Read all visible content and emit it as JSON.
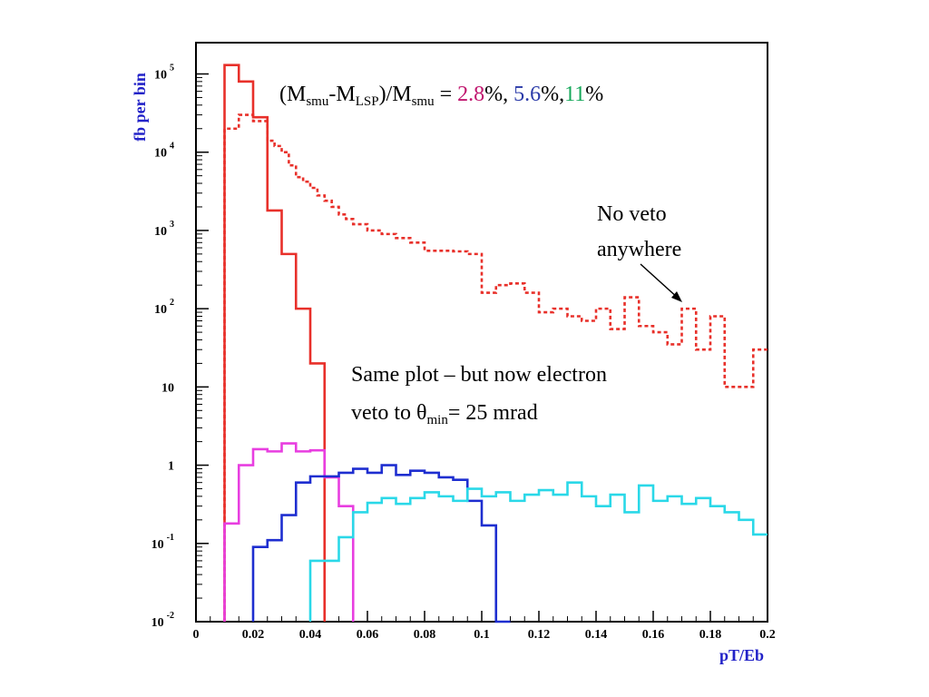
{
  "chart_data": {
    "type": "line",
    "style": "step-histogram",
    "xlabel": "pT/Eb",
    "ylabel": "fb per bin",
    "xlim": [
      0,
      0.2
    ],
    "ylim_log10": [
      -2,
      5.4
    ],
    "yscale": "log",
    "x_ticks": [
      "0",
      "0.02",
      "0.04",
      "0.06",
      "0.08",
      "0.1",
      "0.12",
      "0.14",
      "0.16",
      "0.18",
      "0.2"
    ],
    "y_ticks": [
      {
        "value": 100000,
        "base": "10",
        "exp": "5"
      },
      {
        "value": 10000,
        "base": "10",
        "exp": "4"
      },
      {
        "value": 1000,
        "base": "10",
        "exp": "3"
      },
      {
        "value": 100,
        "base": "10",
        "exp": "2"
      },
      {
        "value": 10,
        "base": "10",
        "exp": ""
      },
      {
        "value": 1,
        "base": "1",
        "exp": ""
      },
      {
        "value": 0.1,
        "base": "10",
        "exp": "-1"
      },
      {
        "value": 0.01,
        "base": "10",
        "exp": "-2"
      }
    ],
    "series": [
      {
        "color": "#e8302a",
        "dash": "4,3",
        "edges": [
          0.01,
          0.015,
          0.02,
          0.025,
          0.0275,
          0.03,
          0.0325,
          0.035,
          0.0375,
          0.04,
          0.0425,
          0.045,
          0.0475,
          0.05,
          0.0525,
          0.055,
          0.06,
          0.065,
          0.07,
          0.075,
          0.08,
          0.085,
          0.09,
          0.095,
          0.1,
          0.105,
          0.11,
          0.115,
          0.12,
          0.125,
          0.13,
          0.135,
          0.14,
          0.145,
          0.15,
          0.155,
          0.16,
          0.165,
          0.17,
          0.175,
          0.18,
          0.185,
          0.19,
          0.195,
          0.2
        ],
        "values": [
          20000,
          30000,
          25000,
          14000,
          12000,
          10000,
          6800,
          4800,
          4200,
          3500,
          2800,
          2400,
          2000,
          1600,
          1400,
          1200,
          1000,
          900,
          800,
          700,
          550,
          550,
          540,
          500,
          160,
          200,
          210,
          160,
          90,
          100,
          80,
          70,
          100,
          55,
          140,
          60,
          50,
          35,
          100,
          30,
          80,
          10,
          10,
          30
        ]
      },
      {
        "color": "#e8302a",
        "dash": "",
        "edges": [
          0.01,
          0.015,
          0.02,
          0.025,
          0.03,
          0.035,
          0.04,
          0.045
        ],
        "values": [
          130000,
          80000,
          28000,
          1800,
          500,
          100,
          20
        ]
      },
      {
        "color": "#e83ee0",
        "dash": "",
        "edges": [
          0.01,
          0.015,
          0.02,
          0.025,
          0.03,
          0.035,
          0.04,
          0.045,
          0.05,
          0.055
        ],
        "values": [
          0.18,
          1.0,
          1.6,
          1.5,
          1.9,
          1.5,
          1.55,
          0.7,
          0.3
        ]
      },
      {
        "color": "#1e2ed0",
        "dash": "",
        "edges": [
          0.02,
          0.025,
          0.03,
          0.035,
          0.04,
          0.045,
          0.05,
          0.055,
          0.06,
          0.065,
          0.07,
          0.075,
          0.08,
          0.085,
          0.09,
          0.095,
          0.1,
          0.105,
          0.11
        ],
        "values": [
          0.09,
          0.11,
          0.23,
          0.6,
          0.72,
          0.72,
          0.8,
          0.9,
          0.8,
          1.0,
          0.75,
          0.85,
          0.8,
          0.7,
          0.65,
          0.35,
          0.17,
          0.01
        ]
      },
      {
        "color": "#2ad8e8",
        "dash": "",
        "edges": [
          0.04,
          0.045,
          0.05,
          0.055,
          0.06,
          0.065,
          0.07,
          0.075,
          0.08,
          0.085,
          0.09,
          0.095,
          0.1,
          0.105,
          0.11,
          0.115,
          0.12,
          0.125,
          0.13,
          0.135,
          0.14,
          0.145,
          0.15,
          0.155,
          0.16,
          0.165,
          0.17,
          0.175,
          0.18,
          0.185,
          0.19,
          0.195,
          0.2
        ],
        "values": [
          0.06,
          0.06,
          0.12,
          0.25,
          0.33,
          0.38,
          0.32,
          0.38,
          0.45,
          0.4,
          0.35,
          0.5,
          0.4,
          0.45,
          0.35,
          0.42,
          0.48,
          0.42,
          0.6,
          0.4,
          0.3,
          0.42,
          0.25,
          0.55,
          0.35,
          0.4,
          0.32,
          0.38,
          0.3,
          0.25,
          0.2,
          0.13
        ]
      }
    ]
  },
  "annotations": {
    "title_open": "(M",
    "title_sub1": "smu",
    "title_mid": "-M",
    "title_sub2": "LSP",
    "title_mid2": ")/M",
    "title_sub3": "smu",
    "title_eq": " = ",
    "val1": "2.8",
    "pct1": "%, ",
    "val2": "5.6",
    "pct2": "%,",
    "val3": "11",
    "pct3": "%",
    "val1_color": "#c0156e",
    "val2_color": "#2a3aa8",
    "val3_color": "#16a85a",
    "no_veto_line1": "No veto",
    "no_veto_line2": "anywhere",
    "same_plot_line1": "Same plot – but now electron",
    "veto_prefix": "veto to ",
    "theta": "θ",
    "theta_sub": "min",
    "veto_suffix": "= 25 mrad"
  }
}
